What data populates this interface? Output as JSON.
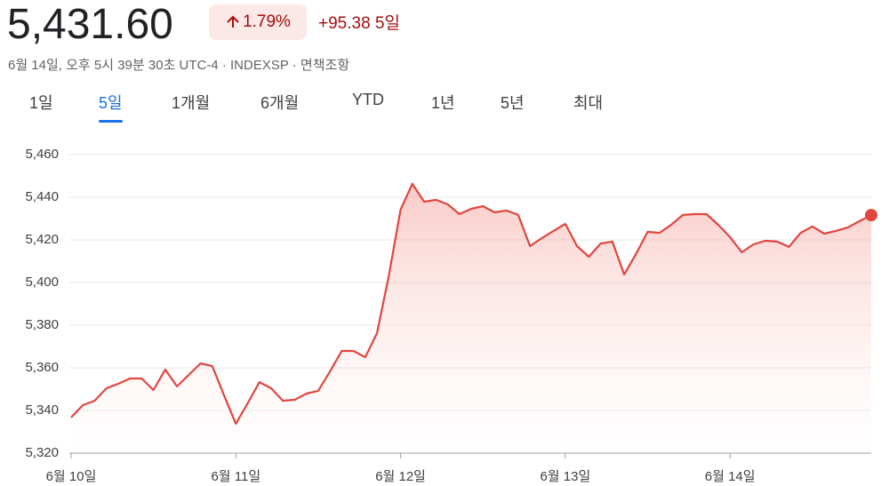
{
  "header": {
    "price": "5,431.60",
    "change_pct": "1.79%",
    "change": "+95.38",
    "period": "5일",
    "meta": "6월 14일, 오후 5시 39분 30초 UTC-4 · INDEXSP · 면책조항"
  },
  "tabs": {
    "items": [
      "1일",
      "5일",
      "1개월",
      "6개월",
      "YTD",
      "1년",
      "5년",
      "최대"
    ],
    "selected": 1
  },
  "chart_data": {
    "type": "line",
    "color": "#e0463f",
    "grid": true,
    "categories": [
      "6월 10일",
      null,
      null,
      null,
      null,
      null,
      null,
      null,
      null,
      null,
      null,
      null,
      null,
      null,
      "6월 11일",
      null,
      null,
      null,
      null,
      null,
      null,
      null,
      null,
      null,
      null,
      null,
      null,
      null,
      "6월 12일",
      null,
      null,
      null,
      null,
      null,
      null,
      null,
      null,
      null,
      null,
      null,
      null,
      null,
      "6월 13일",
      null,
      null,
      null,
      null,
      null,
      null,
      null,
      null,
      null,
      null,
      null,
      null,
      null,
      "6월 14일",
      null,
      null,
      null,
      null,
      null,
      null,
      null,
      null,
      null,
      null,
      null,
      null
    ],
    "values": [
      5336.7,
      5342.5,
      5344.6,
      5350.4,
      5352.5,
      5355,
      5355,
      5349.6,
      5359.2,
      5351.3,
      5356.7,
      5362.1,
      5360.8,
      5347,
      5333.8,
      5343.3,
      5353.3,
      5350.4,
      5344.6,
      5345,
      5347.9,
      5349.2,
      5358.3,
      5367.9,
      5367.9,
      5365,
      5376.3,
      5403.3,
      5434.2,
      5446.3,
      5437.9,
      5438.8,
      5436.7,
      5432.1,
      5434.6,
      5435.8,
      5432.9,
      5433.8,
      5431.7,
      5417.1,
      5420.8,
      5424.2,
      5427.5,
      5417.1,
      5412.1,
      5418.3,
      5419.2,
      5403.8,
      5413.3,
      5423.8,
      5423.3,
      5427.1,
      5431.7,
      5432.1,
      5432.1,
      5427.1,
      5421.3,
      5414.2,
      5417.9,
      5419.6,
      5419.2,
      5416.7,
      5423.3,
      5426.3,
      5422.9,
      5424.2,
      5425.8,
      5428.8,
      5431.6
    ],
    "ylim": [
      5320,
      5460
    ],
    "yticks": [
      {
        "value": 5320,
        "label": "5,320"
      },
      {
        "value": 5340,
        "label": "5,340"
      },
      {
        "value": 5360,
        "label": "5,360"
      },
      {
        "value": 5380,
        "label": "5,380"
      },
      {
        "value": 5400,
        "label": "5,400"
      },
      {
        "value": 5420,
        "label": "5,420"
      },
      {
        "value": 5440,
        "label": "5,440"
      },
      {
        "value": 5460,
        "label": "5,460"
      }
    ]
  }
}
